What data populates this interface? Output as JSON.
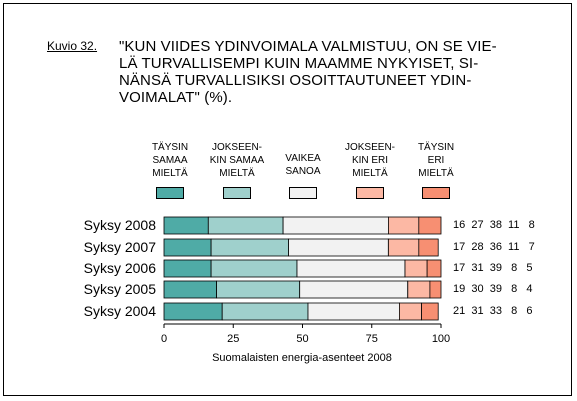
{
  "figure_label": "Kuvio 32.",
  "title": "\"KUN VIIDES YDINVOIMALA VALMISTUU, ON SE VIE-\nLÄ TURVALLISEMPI KUIN MAAMME NYKYISET, SI-\nNÄNSÄ TURVALLISIKSI OSOITTAUTUNEET YDIN-\nVOIMALAT\" (%).",
  "source_note": "Suomalaisten energia-asenteet 2008",
  "chart_data": {
    "type": "bar",
    "orientation": "horizontal",
    "stacked": true,
    "categories": [
      "Syksy 2008",
      "Syksy 2007",
      "Syksy 2006",
      "Syksy 2005",
      "Syksy 2004"
    ],
    "series": [
      {
        "name": "TÄYSIN\nSAMAA\nMIELTÄ",
        "color": "#4faba6",
        "values": [
          16,
          17,
          17,
          19,
          21
        ]
      },
      {
        "name": "JOKSEEN-\nKIN SAMAA\nMIELTÄ",
        "color": "#9fd0cc",
        "values": [
          27,
          28,
          31,
          30,
          31
        ]
      },
      {
        "name": "VAIKEA\nSANOA",
        "color": "#f2f2f2",
        "values": [
          38,
          36,
          39,
          39,
          33
        ]
      },
      {
        "name": "JOKSEEN-\nKIN ERI\nMIELTÄ",
        "color": "#fcb8a4",
        "values": [
          11,
          11,
          8,
          8,
          8
        ]
      },
      {
        "name": "TÄYSIN\nERI\nMIELTÄ",
        "color": "#f78f72",
        "values": [
          8,
          7,
          5,
          4,
          6
        ]
      }
    ],
    "row_value_labels": [
      "16  27  38  11   8",
      "17  28  36  11   7",
      "17  31  39   8   5",
      "19  30  39   8   4",
      "21  31  33   8   6"
    ],
    "xlim": [
      0,
      100
    ],
    "xticks": [
      "0",
      "25",
      "50",
      "75",
      "100"
    ],
    "legend_position": "top",
    "grid": false
  }
}
